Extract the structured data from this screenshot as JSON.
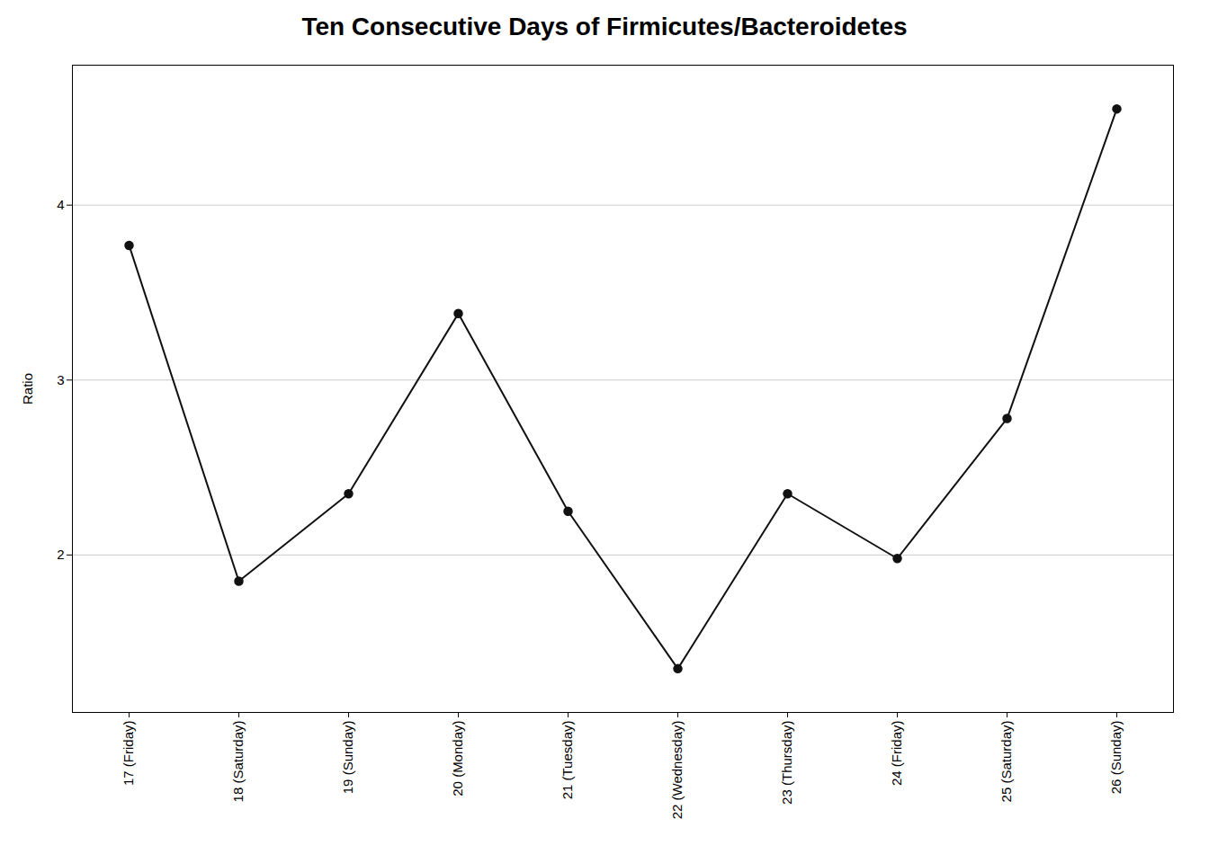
{
  "chart_data": {
    "type": "line",
    "title": "Ten Consecutive Days of Firmicutes/Bacteroidetes",
    "ylabel": "Ratio",
    "categories": [
      "17 (Friday)",
      "18 (Saturday)",
      "19 (Sunday)",
      "20 (Monday)",
      "21 (Tuesday)",
      "22 (Wednesday)",
      "23 (Thursday)",
      "24 (Friday)",
      "25 (Saturday)",
      "26 (Sunday)"
    ],
    "values": [
      3.77,
      1.85,
      2.35,
      3.38,
      2.25,
      1.35,
      2.35,
      1.98,
      2.78,
      4.55
    ],
    "color": "#111111",
    "marker": "circle",
    "ylim": [
      1.1,
      4.8
    ],
    "yticks": [
      2,
      3,
      4
    ],
    "grid": true
  }
}
